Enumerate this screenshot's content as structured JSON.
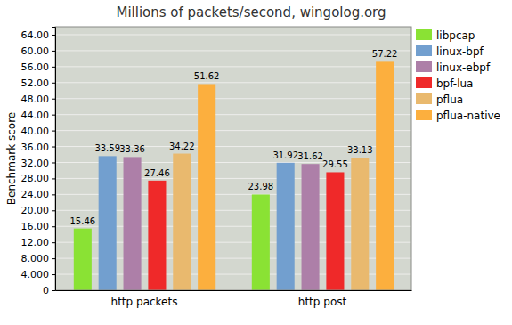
{
  "chart_data": {
    "type": "bar",
    "title": "Millions of packets/second, wingolog.org",
    "y_label": "Benchmark score",
    "categories": [
      "http packets",
      "http post"
    ],
    "series": [
      {
        "name": "libpcap",
        "color": "#8ae234",
        "values": [
          15.46,
          23.98
        ]
      },
      {
        "name": "linux-bpf",
        "color": "#729fcf",
        "values": [
          33.59,
          31.92
        ]
      },
      {
        "name": "linux-ebpf",
        "color": "#ad7fa8",
        "values": [
          33.36,
          31.62
        ]
      },
      {
        "name": "bpf-lua",
        "color": "#ef2929",
        "values": [
          27.46,
          29.55
        ]
      },
      {
        "name": "pflua",
        "color": "#e9b96e",
        "values": [
          34.22,
          33.13
        ]
      },
      {
        "name": "pflua-native",
        "color": "#fcaf3e",
        "values": [
          51.62,
          57.22
        ]
      }
    ],
    "ylim": [
      0,
      66
    ],
    "yticks": [
      0,
      {
        "value": 4,
        "label": "4.000"
      },
      {
        "value": 8,
        "label": "8.000"
      },
      {
        "value": 12,
        "label": "12.00"
      },
      {
        "value": 16,
        "label": "16.00"
      },
      {
        "value": 20,
        "label": "20.00"
      },
      {
        "value": 24,
        "label": "24.00"
      },
      {
        "value": 28,
        "label": "28.00"
      },
      {
        "value": 32,
        "label": "32.00"
      },
      {
        "value": 36,
        "label": "36.00"
      },
      {
        "value": 40,
        "label": "40.00"
      },
      {
        "value": 44,
        "label": "44.00"
      },
      {
        "value": 48,
        "label": "48.00"
      },
      {
        "value": 52,
        "label": "52.00"
      },
      {
        "value": 56,
        "label": "56.00"
      },
      {
        "value": 60,
        "label": "60.00"
      },
      {
        "value": 64,
        "label": "64.00"
      }
    ],
    "grid": true,
    "data_labels": true,
    "legend": "right"
  }
}
